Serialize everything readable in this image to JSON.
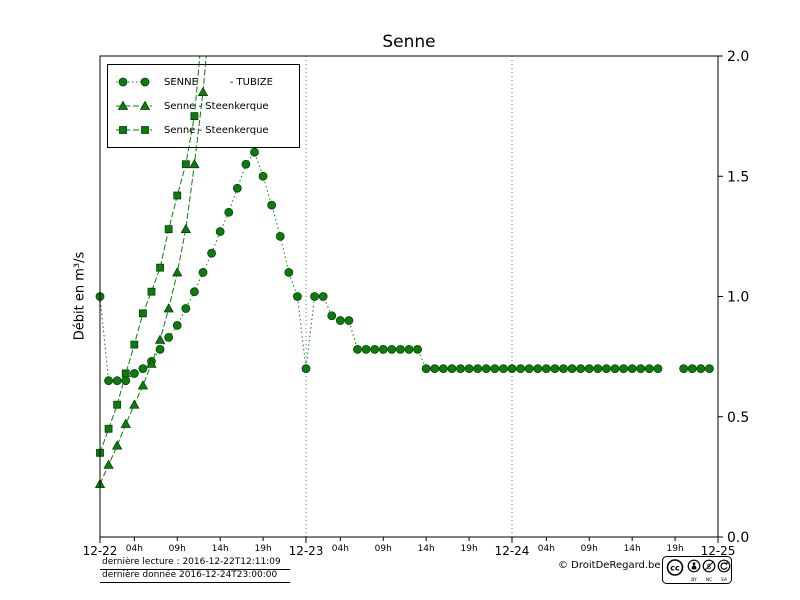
{
  "chart_data": {
    "type": "line",
    "title": "Senne",
    "ylabel": "Débit en m³/s",
    "xlabel": "",
    "x_unit": "hours since 2016-12-22 00:00",
    "xlim": [
      0,
      72
    ],
    "ylim": [
      0,
      2
    ],
    "grid": "vertical dotted at day boundaries",
    "grid_x": [
      24,
      48
    ],
    "legend_position": "upper-left",
    "colors": {
      "series": "#0c7c0c",
      "marker_fill": "#0c7c0c",
      "marker_edge": "#054005",
      "grid": "#557755",
      "axis": "#000000"
    },
    "y_ticks": [
      {
        "value": 0.0,
        "label": "0.0"
      },
      {
        "value": 0.5,
        "label": "0.5"
      },
      {
        "value": 1.0,
        "label": "1.0"
      },
      {
        "value": 1.5,
        "label": "1.5"
      },
      {
        "value": 2.0,
        "label": "2.0"
      }
    ],
    "x_major_ticks": [
      {
        "value": 0,
        "label": "12-22"
      },
      {
        "value": 24,
        "label": "12-23"
      },
      {
        "value": 48,
        "label": "12-24"
      },
      {
        "value": 72,
        "label": "12-25"
      }
    ],
    "x_minor_ticks": [
      {
        "value": 4,
        "label": "04h"
      },
      {
        "value": 9,
        "label": "09h"
      },
      {
        "value": 14,
        "label": "14h"
      },
      {
        "value": 19,
        "label": "19h"
      },
      {
        "value": 28,
        "label": "04h"
      },
      {
        "value": 33,
        "label": "09h"
      },
      {
        "value": 38,
        "label": "14h"
      },
      {
        "value": 43,
        "label": "19h"
      },
      {
        "value": 52,
        "label": "04h"
      },
      {
        "value": 57,
        "label": "09h"
      },
      {
        "value": 62,
        "label": "14h"
      },
      {
        "value": 67,
        "label": "19h"
      }
    ],
    "series": [
      {
        "name": "SENNE          - TUBIZE",
        "marker": "circle",
        "linestyle": "dotted",
        "x": [
          0,
          1,
          2,
          3,
          4,
          5,
          6,
          7,
          8,
          9,
          10,
          11,
          12,
          13,
          14,
          15,
          16,
          17,
          18,
          19,
          20,
          21,
          22,
          23,
          24,
          25,
          26,
          27,
          28,
          29,
          30,
          31,
          32,
          33,
          34,
          35,
          36,
          37,
          38,
          39,
          40,
          41,
          42,
          43,
          44,
          45,
          46,
          47,
          48,
          49,
          50,
          51,
          52,
          53,
          54,
          55,
          56,
          57,
          58,
          59,
          60,
          61,
          62,
          63,
          64,
          65,
          66,
          67,
          68,
          69,
          70,
          71
        ],
        "y": [
          1.0,
          0.65,
          0.65,
          0.65,
          0.68,
          0.7,
          0.73,
          0.78,
          0.83,
          0.88,
          0.95,
          1.02,
          1.1,
          1.18,
          1.27,
          1.35,
          1.45,
          1.55,
          1.6,
          1.5,
          1.38,
          1.25,
          1.1,
          1.0,
          0.7,
          1.0,
          1.0,
          0.92,
          0.9,
          0.9,
          0.78,
          0.78,
          0.78,
          0.78,
          0.78,
          0.78,
          0.78,
          0.78,
          0.7,
          0.7,
          0.7,
          0.7,
          0.7,
          0.7,
          0.7,
          0.7,
          0.7,
          0.7,
          0.7,
          0.7,
          0.7,
          0.7,
          0.7,
          0.7,
          0.7,
          0.7,
          0.7,
          0.7,
          0.7,
          0.7,
          0.7,
          0.7,
          0.7,
          0.7,
          0.7,
          0.7,
          null,
          null,
          0.7,
          0.7,
          0.7,
          0.7
        ]
      },
      {
        "name": "Senne - Steenkerque",
        "marker": "triangle",
        "linestyle": "dashed",
        "x": [
          0,
          1,
          2,
          3,
          4,
          5,
          6,
          7,
          8,
          9,
          10,
          11,
          12,
          13
        ],
        "y": [
          0.22,
          0.3,
          0.38,
          0.47,
          0.55,
          0.63,
          0.72,
          0.82,
          0.95,
          1.1,
          1.28,
          1.55,
          1.85,
          2.25
        ]
      },
      {
        "name": "Senne - Steenkerque",
        "marker": "square",
        "linestyle": "dashed",
        "x": [
          0,
          1,
          2,
          3,
          4,
          5,
          6,
          7,
          8,
          9,
          10,
          11,
          12
        ],
        "y": [
          0.35,
          0.45,
          0.55,
          0.68,
          0.8,
          0.93,
          1.02,
          1.12,
          1.28,
          1.42,
          1.55,
          1.75,
          2.15
        ]
      }
    ]
  },
  "footer": {
    "last_reading": "dernière lecture : 2016-12-22T12:11:09",
    "last_data": "dernière donnée  2016-12-24T23:00:00",
    "copyright": "© DroitDeRegard.be",
    "cc_badge": {
      "cc": "cc",
      "by": "BY",
      "nc": "NC",
      "sa": "SA"
    }
  }
}
